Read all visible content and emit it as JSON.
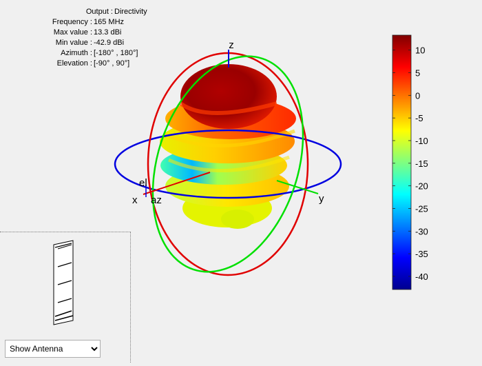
{
  "info": {
    "rows": [
      {
        "label": "Output :",
        "value": "Directivity"
      },
      {
        "label": "Frequency :",
        "value": "165 MHz"
      },
      {
        "label": "Max value :",
        "value": "13.3 dBi"
      },
      {
        "label": "Min value :",
        "value": "-42.9 dBi"
      },
      {
        "label": "Azimuth :",
        "value": "[-180° , 180°]"
      },
      {
        "label": "Elevation :",
        "value": "[-90° , 90°]"
      }
    ]
  },
  "axes": {
    "x": "x",
    "y": "y",
    "z": "z",
    "az": "az",
    "el": "el"
  },
  "colorbar": {
    "range": [
      -42.9,
      13.3
    ],
    "ticks": [
      "10",
      "5",
      "0",
      "-5",
      "-10",
      "-15",
      "-20",
      "-25",
      "-30",
      "-35",
      "-40"
    ],
    "colormap": "jet"
  },
  "antenna_view": {
    "select_value": "Show Antenna",
    "options": [
      "Show Antenna"
    ]
  },
  "colors": {
    "x_axis": "#e00000",
    "y_axis": "#00e000",
    "z_axis": "#0000e0"
  }
}
